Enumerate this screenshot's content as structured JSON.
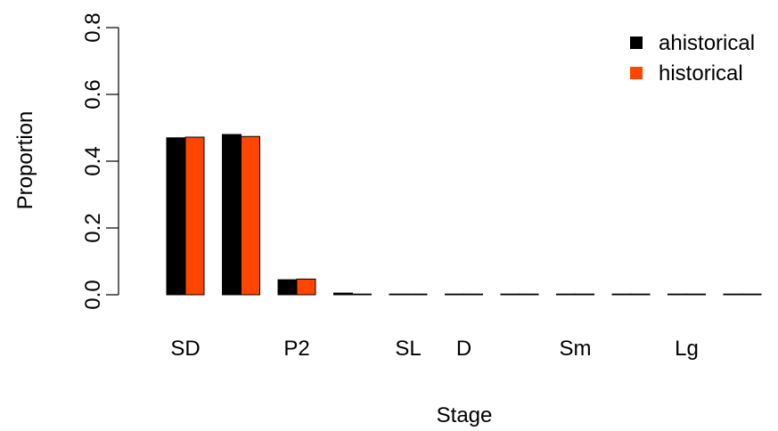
{
  "chart_data": {
    "type": "bar",
    "xlabel": "Stage",
    "ylabel": "Proportion",
    "ylim": [
      0,
      0.8
    ],
    "yticks": [
      "0.0",
      "0.2",
      "0.4",
      "0.6",
      "0.8"
    ],
    "categories": [
      "SD",
      "",
      "P2",
      "",
      "SL",
      "D",
      "",
      "Sm",
      "",
      "Lg",
      "",
      ""
    ],
    "series": [
      {
        "name": "ahistorical",
        "color": "#000000",
        "values": [
          0.47,
          0.48,
          0.045,
          0.005,
          0.001,
          0.001,
          0.001,
          0.001,
          0.001,
          0.001,
          0.001,
          0.001
        ]
      },
      {
        "name": "historical",
        "color": "#FF4500",
        "values": [
          0.472,
          0.474,
          0.047,
          0.002,
          0.001,
          0.001,
          0.001,
          0.001,
          0.001,
          0.001,
          0.001,
          0.001
        ]
      }
    ],
    "legend_position": "top-right",
    "grid": false
  }
}
